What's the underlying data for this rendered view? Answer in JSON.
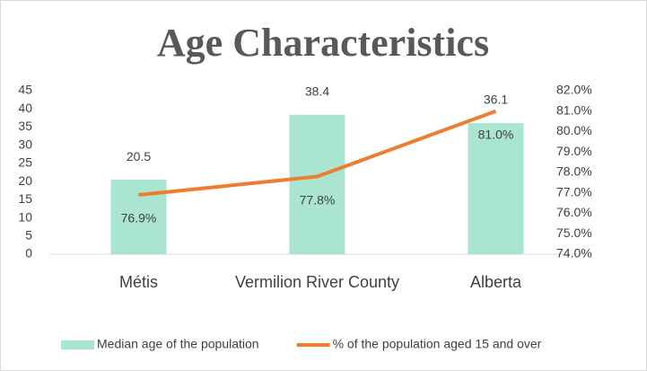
{
  "chart_data": {
    "type": "bar",
    "title": "Age Characteristics",
    "categories": [
      "Métis",
      "Vermilion River County",
      "Alberta"
    ],
    "series": [
      {
        "name": "Median age of the population",
        "type": "bar",
        "color": "#a9e5d0",
        "values": [
          20.5,
          38.4,
          36.1
        ]
      },
      {
        "name": "% of the population aged 15 and over",
        "type": "line",
        "axis": "y2",
        "color": "#ed7d31",
        "values": [
          76.9,
          77.8,
          81.0
        ],
        "value_labels": [
          "76.9%",
          "77.8%",
          "81.0%"
        ]
      }
    ],
    "ylim": [
      0,
      45
    ],
    "yticks": [
      0,
      5,
      10,
      15,
      20,
      25,
      30,
      35,
      40,
      45
    ],
    "y2lim": [
      74,
      82
    ],
    "y2ticks": [
      {
        "value": 74,
        "label": "74.0%"
      },
      {
        "value": 75,
        "label": "75.0%"
      },
      {
        "value": 76,
        "label": "76.0%"
      },
      {
        "value": 77,
        "label": "77.0%"
      },
      {
        "value": 78,
        "label": "78.0%"
      },
      {
        "value": 79,
        "label": "79.0%"
      },
      {
        "value": 80,
        "label": "80.0%"
      },
      {
        "value": 81,
        "label": "81.0%"
      },
      {
        "value": 82,
        "label": "82.0%"
      }
    ],
    "legend": "bottom",
    "grid": false
  }
}
